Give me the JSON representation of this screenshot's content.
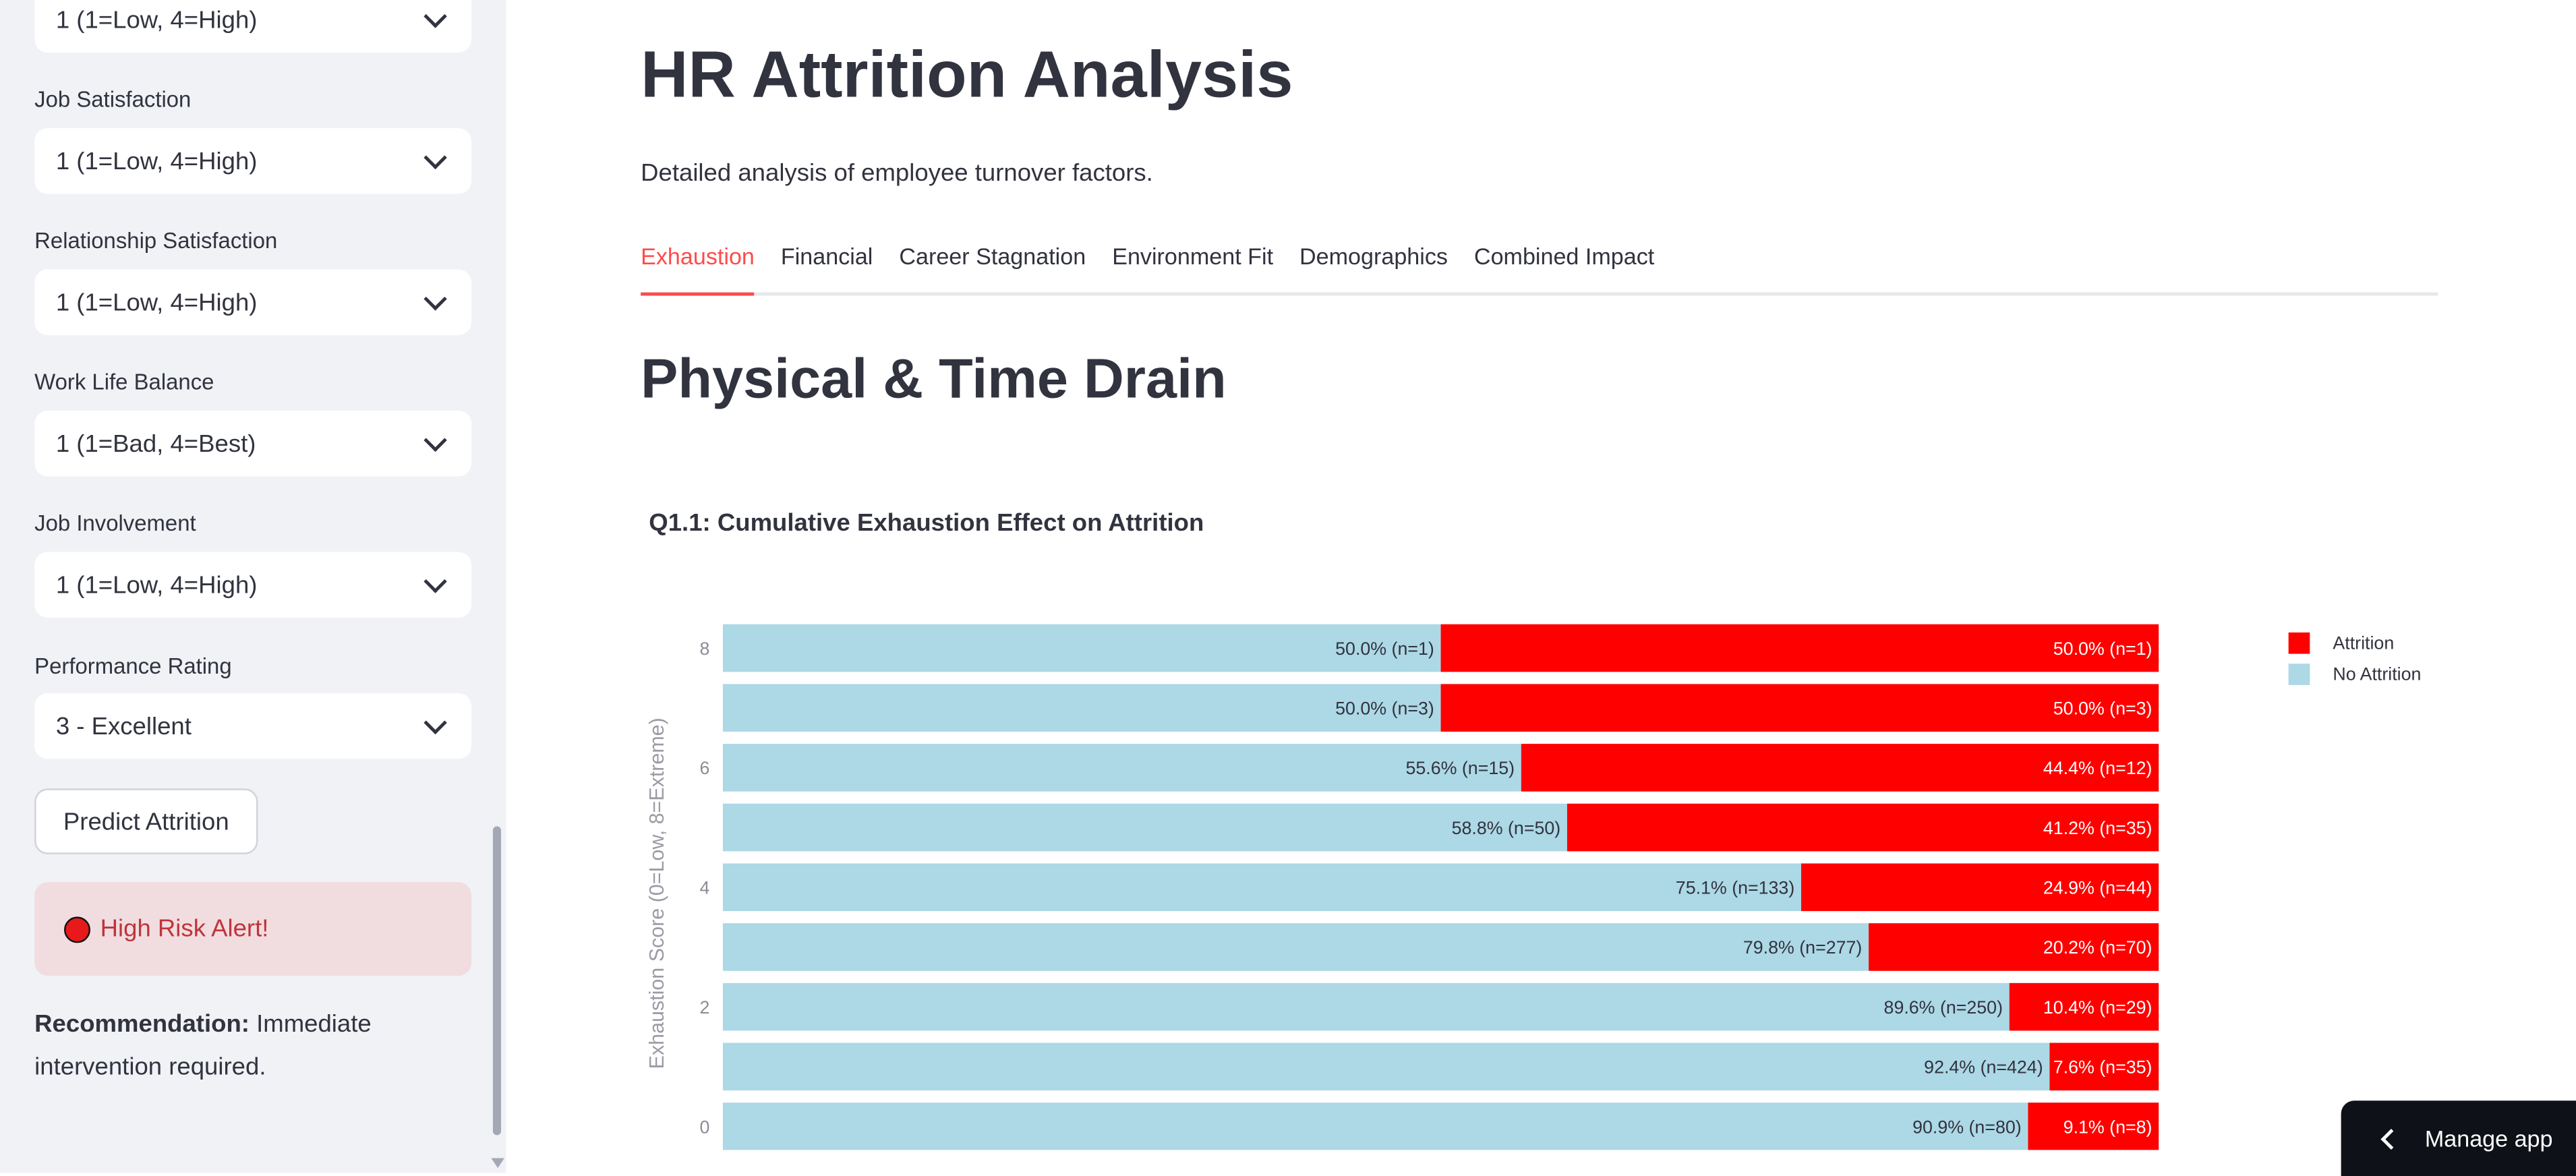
{
  "sidebar": {
    "top_select": "1 (1=Low, 4=High)",
    "fields": [
      {
        "label": "Job Satisfaction",
        "value": "1 (1=Low, 4=High)"
      },
      {
        "label": "Relationship Satisfaction",
        "value": "1 (1=Low, 4=High)"
      },
      {
        "label": "Work Life Balance",
        "value": "1 (1=Bad, 4=Best)"
      },
      {
        "label": "Job Involvement",
        "value": "1 (1=Low, 4=High)"
      },
      {
        "label": "Performance Rating",
        "value": "3 - Excellent"
      }
    ],
    "predict_button": "Predict Attrition",
    "alert": "High Risk Alert!",
    "recommendation_label": "Recommendation:",
    "recommendation_text": " Immediate intervention required."
  },
  "main": {
    "title": "HR Attrition Analysis",
    "subtitle": "Detailed analysis of employee turnover factors.",
    "tabs": [
      "Exhaustion",
      "Financial",
      "Career Stagnation",
      "Environment Fit",
      "Demographics",
      "Combined Impact"
    ],
    "section_title": "Physical & Time Drain"
  },
  "manage_app": "Manage app",
  "chart_data": {
    "type": "bar",
    "orientation": "horizontal",
    "stacked": true,
    "title": "Q1.1: Cumulative Exhaustion Effect on Attrition",
    "ylabel": "Exhaustion Score (0=Low, 8=Extreme)",
    "xlabel": "",
    "xlim": [
      0,
      100
    ],
    "categories": [
      0,
      1,
      2,
      3,
      4,
      5,
      6,
      7,
      8
    ],
    "y_tick_labels": [
      "0",
      "2",
      "4",
      "6",
      "8"
    ],
    "legend": {
      "placement": "top-right",
      "entries": [
        "Attrition",
        "No Attrition"
      ]
    },
    "colors": {
      "No Attrition": "#add8e6",
      "Attrition": "#ff0000"
    },
    "series": [
      {
        "name": "No Attrition",
        "values": [
          90.9,
          92.4,
          89.6,
          79.8,
          75.1,
          58.8,
          55.6,
          50.0,
          50.0
        ],
        "n": [
          80,
          424,
          250,
          277,
          133,
          50,
          15,
          3,
          1
        ],
        "labels": [
          "90.9%  (n=80)",
          "92.4%  (n=424)",
          "89.6%  (n=250)",
          "79.8%  (n=277)",
          "75.1%  (n=133)",
          "58.8%  (n=50)",
          "55.6%  (n=15)",
          "50.0%  (n=3)",
          "50.0%  (n=1)"
        ]
      },
      {
        "name": "Attrition",
        "values": [
          9.1,
          7.6,
          10.4,
          20.2,
          24.9,
          41.2,
          44.4,
          50.0,
          50.0
        ],
        "n": [
          8,
          35,
          29,
          70,
          44,
          35,
          12,
          3,
          1
        ],
        "labels": [
          "9.1%  (n=8)",
          "7.6%  (n=35)",
          "10.4%  (n=29)",
          "20.2%  (n=70)",
          "24.9%  (n=44)",
          "41.2%  (n=35)",
          "44.4%  (n=12)",
          "50.0%  (n=3)",
          "50.0%  (n=1)"
        ]
      }
    ]
  }
}
